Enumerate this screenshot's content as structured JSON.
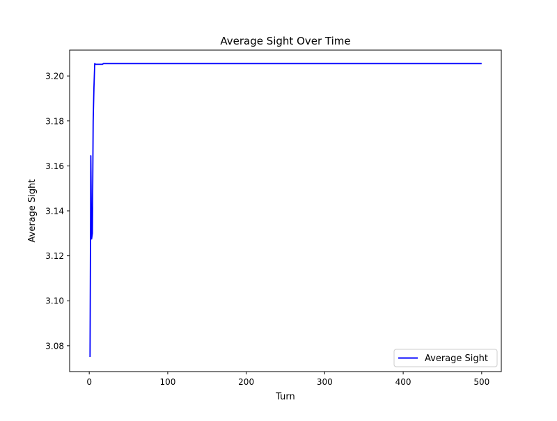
{
  "chart_data": {
    "type": "line",
    "title": "Average Sight Over Time",
    "xlabel": "Turn",
    "ylabel": "Average Sight",
    "xlim": [
      -25,
      525
    ],
    "ylim": [
      3.0685,
      3.2115
    ],
    "xticks": [
      0,
      100,
      200,
      300,
      400,
      500
    ],
    "xtick_labels": [
      "0",
      "100",
      "200",
      "300",
      "400",
      "500"
    ],
    "yticks": [
      3.08,
      3.1,
      3.12,
      3.14,
      3.16,
      3.18,
      3.2
    ],
    "ytick_labels": [
      "3.08",
      "3.10",
      "3.12",
      "3.14",
      "3.16",
      "3.18",
      "3.20"
    ],
    "grid": false,
    "legend_position": "bottom-right",
    "series": [
      {
        "name": "Average Sight",
        "color": "#0000ff",
        "x": [
          1,
          2,
          3,
          4,
          5,
          6,
          7,
          8,
          10,
          12,
          15,
          17,
          18,
          19,
          20,
          50,
          100,
          200,
          300,
          400,
          500
        ],
        "y": [
          3.075,
          3.1645,
          3.1275,
          3.13,
          3.18,
          3.195,
          3.2055,
          3.2052,
          3.2052,
          3.2052,
          3.2052,
          3.2052,
          3.2055,
          3.2055,
          3.2055,
          3.2055,
          3.2055,
          3.2055,
          3.2055,
          3.2055,
          3.2055
        ]
      }
    ]
  }
}
